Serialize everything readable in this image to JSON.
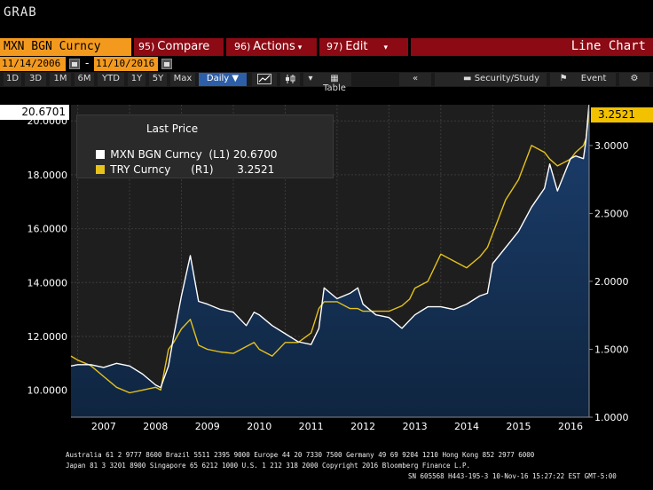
{
  "window": {
    "title": "GRAB"
  },
  "command_bar": {
    "security": "MXN BGN Curncy",
    "compare": {
      "num": "95)",
      "label": "Compare"
    },
    "actions": {
      "num": "96)",
      "label": "Actions"
    },
    "edit": {
      "num": "97)",
      "label": "Edit"
    },
    "chart_type": "Line Chart"
  },
  "date_range": {
    "start": "11/14/2006",
    "dash": "-",
    "end": "11/10/2016"
  },
  "toolbar": {
    "periods": [
      "1D",
      "3D",
      "1M",
      "6M",
      "YTD",
      "1Y",
      "5Y",
      "Max"
    ],
    "frequency": "Daily ▼",
    "table": "Table",
    "security_study": "Security/Study",
    "event": "Event"
  },
  "last_values": {
    "left": "20.6701",
    "right": "3.2521"
  },
  "legend": {
    "title": "Last Price",
    "rows": [
      {
        "name": "MXN BGN Curncy",
        "axis": "(L1)",
        "value": "20.6700",
        "color": "#ffffff"
      },
      {
        "name": "TRY Curncy",
        "axis": "(R1)",
        "value": "3.2521",
        "color": "#e6c21a"
      }
    ]
  },
  "chart_data": {
    "type": "line",
    "x_labels": [
      "2007",
      "2008",
      "2009",
      "2010",
      "2011",
      "2012",
      "2013",
      "2014",
      "2015",
      "2016"
    ],
    "left_axis": {
      "ticks": [
        "10.0000",
        "12.0000",
        "14.0000",
        "16.0000",
        "18.0000",
        "20.0000"
      ],
      "range": [
        9.0,
        20.6
      ]
    },
    "right_axis": {
      "ticks": [
        "1.0000",
        "1.5000",
        "2.0000",
        "2.5000",
        "3.0000"
      ],
      "range": [
        1.0,
        3.3
      ]
    },
    "x": [
      2006.87,
      2007.0,
      2007.25,
      2007.5,
      2007.75,
      2008.0,
      2008.25,
      2008.5,
      2008.6,
      2008.75,
      2008.85,
      2009.0,
      2009.17,
      2009.33,
      2009.5,
      2009.75,
      2010.0,
      2010.25,
      2010.4,
      2010.5,
      2010.75,
      2011.0,
      2011.25,
      2011.5,
      2011.65,
      2011.75,
      2012.0,
      2012.25,
      2012.4,
      2012.5,
      2012.75,
      2013.0,
      2013.25,
      2013.4,
      2013.5,
      2013.75,
      2014.0,
      2014.25,
      2014.5,
      2014.75,
      2014.9,
      2015.0,
      2015.25,
      2015.5,
      2015.75,
      2016.0,
      2016.1,
      2016.25,
      2016.5,
      2016.6,
      2016.75,
      2016.8,
      2016.86
    ],
    "series": [
      {
        "name": "MXN BGN Curncy",
        "axis": "left",
        "color": "#ffffff",
        "values": [
          10.9,
          10.95,
          10.95,
          10.85,
          11.0,
          10.9,
          10.6,
          10.2,
          10.1,
          10.9,
          12.0,
          13.5,
          15.0,
          13.3,
          13.2,
          13.0,
          12.9,
          12.4,
          12.9,
          12.8,
          12.4,
          12.1,
          11.8,
          11.7,
          12.3,
          13.8,
          13.4,
          13.6,
          13.8,
          13.2,
          12.8,
          12.7,
          12.3,
          12.6,
          12.8,
          13.1,
          13.1,
          13.0,
          13.2,
          13.5,
          13.6,
          14.7,
          15.3,
          15.9,
          16.8,
          17.5,
          18.4,
          17.4,
          18.6,
          18.7,
          18.6,
          19.3,
          20.67
        ]
      },
      {
        "name": "TRY Curncy",
        "axis": "right",
        "color": "#e6c21a",
        "values": [
          1.45,
          1.42,
          1.38,
          1.3,
          1.22,
          1.18,
          1.2,
          1.22,
          1.2,
          1.5,
          1.55,
          1.65,
          1.72,
          1.53,
          1.5,
          1.48,
          1.47,
          1.52,
          1.55,
          1.5,
          1.45,
          1.55,
          1.55,
          1.62,
          1.8,
          1.85,
          1.85,
          1.8,
          1.8,
          1.78,
          1.78,
          1.78,
          1.82,
          1.87,
          1.95,
          2.0,
          2.2,
          2.15,
          2.1,
          2.18,
          2.25,
          2.35,
          2.6,
          2.75,
          3.0,
          2.95,
          2.9,
          2.85,
          2.9,
          2.95,
          3.0,
          3.05,
          3.25
        ]
      }
    ],
    "grid": true,
    "legend_position": "top-left"
  },
  "footer": {
    "line1": "Australia 61 2 9777 8600 Brazil 5511 2395 9000 Europe 44 20 7330 7500 Germany 49 69 9204 1210 Hong Kong 852 2977 6000",
    "line2": "Japan 81 3 3201 8900      Singapore 65 6212 1000      U.S. 1 212 318 2000           Copyright 2016 Bloomberg Finance L.P.",
    "line3": "SN 605568 H443-195-3 10-Nov-16 15:27:22 EST  GMT-5:00"
  }
}
